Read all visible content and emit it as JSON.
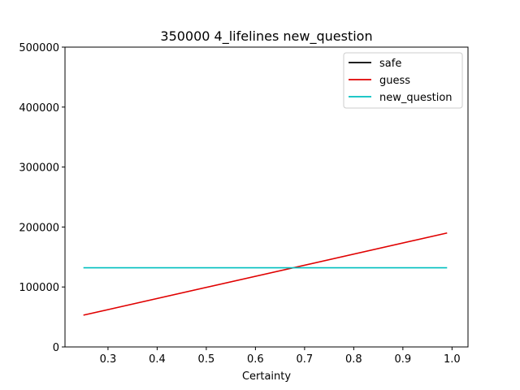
{
  "chart_data": {
    "type": "line",
    "title": "350000 4_lifelines new_question",
    "xlabel": "Certainty",
    "ylabel": "",
    "xlim": [
      0.2125,
      1.0325
    ],
    "ylim": [
      0,
      500000
    ],
    "x_ticks": [
      0.3,
      0.4,
      0.5,
      0.6,
      0.7,
      0.8,
      0.9,
      1.0
    ],
    "x_tick_labels": [
      "0.3",
      "0.4",
      "0.5",
      "0.6",
      "0.7",
      "0.8",
      "0.9",
      "1.0"
    ],
    "y_ticks": [
      0,
      100000,
      200000,
      300000,
      400000,
      500000
    ],
    "y_tick_labels": [
      "0",
      "100000",
      "200000",
      "300000",
      "400000",
      "500000"
    ],
    "grid": false,
    "legend_position": "top-right",
    "series": [
      {
        "name": "safe",
        "color": "#000000",
        "x": [
          0.25,
          0.99
        ],
        "y": [
          null,
          null
        ]
      },
      {
        "name": "guess",
        "color": "#e00000",
        "x": [
          0.25,
          0.99
        ],
        "y": [
          53000,
          190000
        ]
      },
      {
        "name": "new_question",
        "color": "#00bfbf",
        "x": [
          0.25,
          0.99
        ],
        "y": [
          132000,
          132000
        ]
      }
    ]
  }
}
